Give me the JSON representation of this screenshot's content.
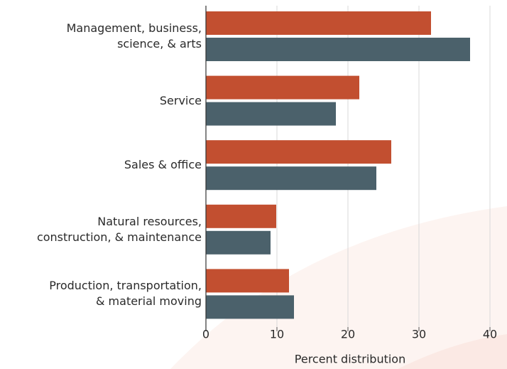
{
  "chart_data": {
    "type": "barh",
    "categories": [
      "Management, business,\nscience, & arts",
      "Service",
      "Sales & office",
      "Natural resources,\nconstruction, & maintenance",
      "Production, transportation,\n& material moving"
    ],
    "series": [
      {
        "color": "#c24f30",
        "values": [
          31.7,
          21.6,
          26.1,
          9.9,
          11.7
        ]
      },
      {
        "color": "#4b616b",
        "values": [
          37.2,
          18.3,
          24.0,
          9.1,
          12.4
        ]
      }
    ],
    "xlabel": "Percent distribution",
    "xlim": [
      0,
      40
    ],
    "xticks": [
      0,
      10,
      20,
      30,
      40
    ],
    "grid": true
  }
}
